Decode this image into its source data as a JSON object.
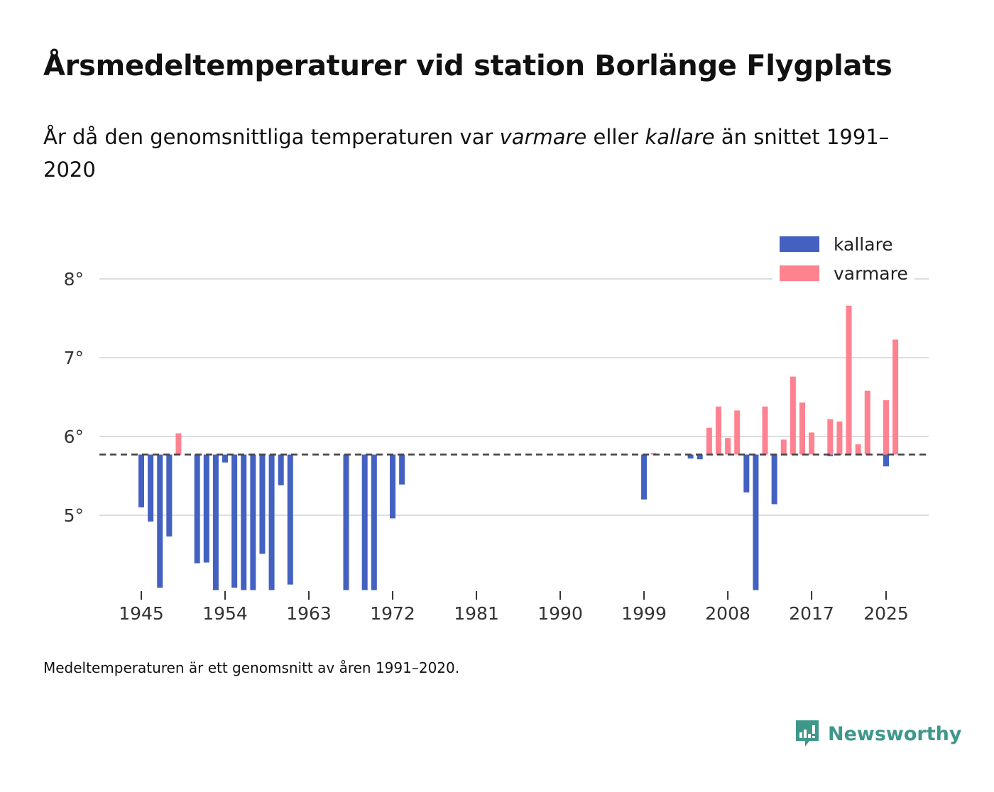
{
  "title": "Årsmedeltemperaturer vid station Borlänge Flygplats",
  "subtitle": {
    "part1": "År då den genomsnittliga temperaturen var ",
    "warmer_word": "varmare",
    "part2": " eller ",
    "colder_word": "kallare",
    "part3": " än snittet 1991–2020"
  },
  "footnote": "Medeltemperaturen är ett genomsnitt av åren 1991–2020.",
  "brand": "Newsworthy",
  "colors": {
    "cold": "#4361c1",
    "warm": "#ff8290",
    "grid": "#dddddd",
    "baseline": "#444444",
    "brand": "#3e978b",
    "axis_text": "#333333"
  },
  "chart_data": {
    "type": "bar",
    "title": "Årsmedeltemperaturer vid station Borlänge Flygplats",
    "xlabel": "",
    "ylabel": "",
    "baseline": 5.77,
    "ylim": [
      4.05,
      8.2
    ],
    "xlim": [
      1941,
      2029
    ],
    "yticks": [
      {
        "value": 5,
        "label": "5°"
      },
      {
        "value": 6,
        "label": "6°"
      },
      {
        "value": 7,
        "label": "7°"
      },
      {
        "value": 8,
        "label": "8°"
      }
    ],
    "xticks": [
      {
        "value": 1945,
        "label": "1945"
      },
      {
        "value": 1954,
        "label": "1954"
      },
      {
        "value": 1963,
        "label": "1963"
      },
      {
        "value": 1972,
        "label": "1972"
      },
      {
        "value": 1981,
        "label": "1981"
      },
      {
        "value": 1990,
        "label": "1990"
      },
      {
        "value": 1999,
        "label": "1999"
      },
      {
        "value": 2008,
        "label": "2008"
      },
      {
        "value": 2017,
        "label": "2017"
      },
      {
        "value": 2025,
        "label": "2025"
      }
    ],
    "legend": [
      {
        "key": "cold",
        "label": "kallare"
      },
      {
        "key": "warm",
        "label": "varmare"
      }
    ],
    "legend_position": "top-right",
    "series": [
      {
        "name": "kallare",
        "points": [
          {
            "year": 1945,
            "value": 5.1
          },
          {
            "year": 1946,
            "value": 4.92
          },
          {
            "year": 1947,
            "value": 4.08
          },
          {
            "year": 1948,
            "value": 4.73
          },
          {
            "year": 1951,
            "value": 4.39
          },
          {
            "year": 1952,
            "value": 4.4
          },
          {
            "year": 1953,
            "value": 4.05
          },
          {
            "year": 1954,
            "value": 5.67
          },
          {
            "year": 1955,
            "value": 4.08
          },
          {
            "year": 1956,
            "value": 4.05
          },
          {
            "year": 1957,
            "value": 4.05
          },
          {
            "year": 1958,
            "value": 4.51
          },
          {
            "year": 1959,
            "value": 4.05
          },
          {
            "year": 1960,
            "value": 5.38
          },
          {
            "year": 1961,
            "value": 4.12
          },
          {
            "year": 1967,
            "value": 4.05
          },
          {
            "year": 1969,
            "value": 4.05
          },
          {
            "year": 1970,
            "value": 4.05
          },
          {
            "year": 1972,
            "value": 4.96
          },
          {
            "year": 1973,
            "value": 5.39
          },
          {
            "year": 1999,
            "value": 5.2
          },
          {
            "year": 2004,
            "value": 5.72
          },
          {
            "year": 2005,
            "value": 5.71
          },
          {
            "year": 2010,
            "value": 5.29
          },
          {
            "year": 2011,
            "value": 4.05
          },
          {
            "year": 2013,
            "value": 5.14
          },
          {
            "year": 2019,
            "value": 5.75
          },
          {
            "year": 2025,
            "value": 5.62
          }
        ]
      },
      {
        "name": "varmare",
        "points": [
          {
            "year": 1949,
            "value": 6.04
          },
          {
            "year": 2000,
            "value": 5.79
          },
          {
            "year": 2006,
            "value": 6.11
          },
          {
            "year": 2007,
            "value": 6.38
          },
          {
            "year": 2008,
            "value": 5.98
          },
          {
            "year": 2009,
            "value": 6.33
          },
          {
            "year": 2012,
            "value": 6.38
          },
          {
            "year": 2014,
            "value": 5.96
          },
          {
            "year": 2015,
            "value": 6.76
          },
          {
            "year": 2016,
            "value": 6.43
          },
          {
            "year": 2017,
            "value": 6.05
          },
          {
            "year": 2019,
            "value": 6.22
          },
          {
            "year": 2020,
            "value": 6.19
          },
          {
            "year": 2021,
            "value": 7.66
          },
          {
            "year": 2022,
            "value": 5.9
          },
          {
            "year": 2023,
            "value": 6.58
          },
          {
            "year": 2025,
            "value": 6.46
          },
          {
            "year": 2026,
            "value": 7.23
          }
        ]
      }
    ]
  }
}
